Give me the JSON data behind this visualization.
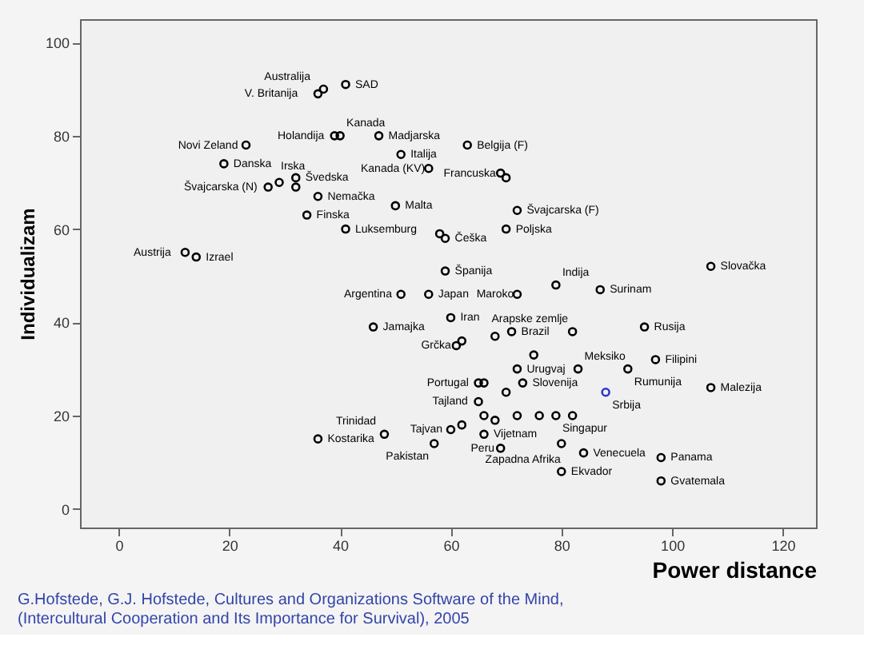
{
  "chart_data": {
    "type": "scatter",
    "xlabel": "Power distance",
    "ylabel": "Individualizam",
    "xlim": [
      -7,
      126
    ],
    "ylim": [
      -4,
      105
    ],
    "xticks": [
      0,
      20,
      40,
      60,
      80,
      100,
      120
    ],
    "yticks": [
      0,
      20,
      40,
      60,
      80,
      100
    ],
    "grid": false,
    "marker": "circle",
    "legend": false,
    "annotations": [
      "G.Hofstede, G.J. Hofstede, Cultures and Organizations Software of the Mind,",
      "(Intercultural Cooperation and Its Importance for Survival), 2005"
    ],
    "series": [
      {
        "color": "#000000",
        "x": [
          41,
          37,
          36,
          39,
          40,
          47,
          51,
          63,
          23,
          19,
          29,
          32,
          32,
          27,
          34,
          36,
          12,
          14,
          56,
          50,
          41,
          58,
          59,
          59,
          69,
          70,
          72,
          70,
          107,
          79,
          87,
          51,
          56,
          72,
          60,
          68,
          71,
          82,
          95,
          62,
          61,
          75,
          72,
          97,
          83,
          92,
          107,
          65,
          66,
          73,
          70,
          65,
          66,
          68,
          72,
          76,
          79,
          82,
          60,
          62,
          66,
          80,
          57,
          69,
          84,
          98,
          80,
          98,
          46,
          36,
          48
        ],
        "values": [
          91,
          90,
          89,
          80,
          80,
          80,
          76,
          78,
          78,
          74,
          70,
          71,
          69,
          69,
          63,
          67,
          55,
          54,
          73,
          65,
          60,
          59,
          58,
          51,
          72,
          71,
          64,
          60,
          52,
          48,
          47,
          46,
          46,
          46,
          41,
          37,
          38,
          38,
          39,
          36,
          35,
          33,
          30,
          32,
          30,
          30,
          26,
          27,
          27,
          27,
          25,
          23,
          20,
          19,
          20,
          20,
          20,
          20,
          17,
          18,
          16,
          14,
          14,
          13,
          12,
          11,
          8,
          6,
          39,
          15,
          16
        ],
        "value_labels": [
          "SAD",
          "Australija",
          "V. Britanija",
          "Holandija",
          "Kanada",
          "Madjarska",
          "Italija",
          "Belgija (F)",
          "Novi Zeland",
          "Danska",
          "Irska",
          "Švedska",
          null,
          "Švajcarska (N)",
          "Finska",
          "Nemačka",
          "Austrija",
          "Izrael",
          "Kanada (KV)",
          "Malta",
          "Luksemburg",
          null,
          "Češka",
          "Španija",
          "Francuska",
          null,
          "Švajcarska (F)",
          "Poljska",
          "Slovačka",
          "Indija",
          "Surinam",
          "Argentina",
          "Japan",
          "Maroko",
          "Iran",
          null,
          "Brazil",
          "Arapske zemlje",
          "Rusija",
          null,
          "Grčka",
          null,
          "Urugvaj",
          "Filipini",
          "Meksiko",
          "Rumunija",
          "Malezija",
          "Portugal",
          null,
          "Slovenija",
          null,
          "Tajland",
          null,
          null,
          null,
          null,
          "Singapur",
          null,
          "Tajvan",
          null,
          "Vijetnam",
          "Zapadna Afrika",
          "Pakistan",
          "Peru",
          "Venecuela",
          "Panama",
          "Ekvador",
          "Gvatemala",
          "Jamajka",
          "Kostarika",
          "Trinidad"
        ]
      },
      {
        "color": "#3333cc",
        "x": [
          88
        ],
        "values": [
          25
        ],
        "value_labels": [
          "Srbija"
        ]
      }
    ]
  }
}
